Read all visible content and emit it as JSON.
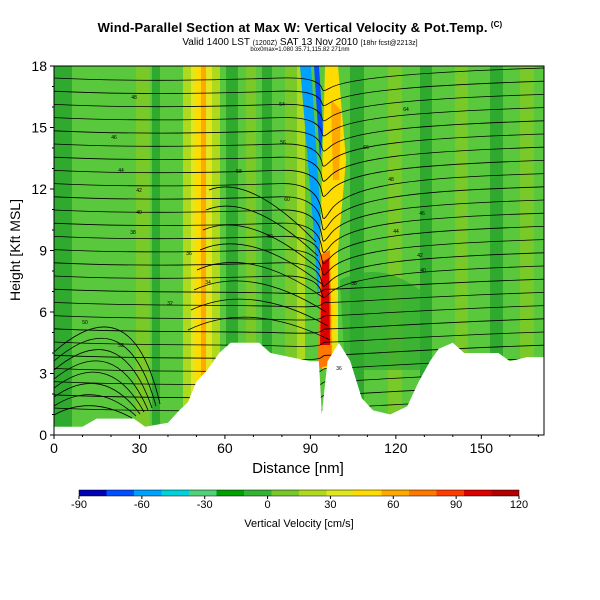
{
  "header": {
    "title": "Wind-Parallel Section at Max W: Vertical Velocity & Pot.Temp.",
    "title_mark": "(C)",
    "valid_main": "Valid 1400 LST",
    "valid_utc": "(1200Z)",
    "valid_date": "SAT 13 Nov 2010",
    "valid_run": "[18hr fcst@2213z]",
    "subline": "box0max=1.080 35.71,115.82 271nm"
  },
  "chart_data": {
    "type": "heatmap",
    "xlabel": "Distance [nm]",
    "ylabel": "Height [Kft MSL]",
    "xlim": [
      0,
      172
    ],
    "ylim": [
      0,
      18
    ],
    "x_ticks": [
      "0",
      "30",
      "60",
      "90",
      "120",
      "150"
    ],
    "y_ticks": [
      "0",
      "3",
      "6",
      "9",
      "12",
      "15",
      "18"
    ],
    "colorbar": {
      "label": "Vertical Velocity [cm/s]",
      "range": [
        -90,
        120
      ],
      "ticks": [
        "-90",
        "-60",
        "-30",
        "0",
        "30",
        "60",
        "90",
        "120"
      ],
      "colors": [
        "#0000b4",
        "#0050ff",
        "#00a0ff",
        "#00d2dc",
        "#50d278",
        "#00a000",
        "#32b432",
        "#78c828",
        "#afd91c",
        "#e1e61e",
        "#ffdc00",
        "#ffa800",
        "#ff7800",
        "#ff3c00",
        "#dc0000",
        "#b40000"
      ]
    },
    "terrain_kft": [
      [
        0,
        0.4
      ],
      [
        10,
        0.4
      ],
      [
        15,
        0.8
      ],
      [
        28,
        0.8
      ],
      [
        32,
        0.4
      ],
      [
        40,
        0.6
      ],
      [
        44,
        1.2
      ],
      [
        47,
        1.6
      ],
      [
        50,
        2.6
      ],
      [
        54,
        3.2
      ],
      [
        58,
        4.0
      ],
      [
        62,
        4.5
      ],
      [
        72,
        4.5
      ],
      [
        76,
        4.0
      ],
      [
        90,
        3.6
      ],
      [
        93,
        3.6
      ],
      [
        94,
        1.0
      ],
      [
        96,
        3.6
      ],
      [
        100,
        4.5
      ],
      [
        104,
        3.6
      ],
      [
        108,
        1.8
      ],
      [
        112,
        1.2
      ],
      [
        118,
        1.0
      ],
      [
        124,
        1.4
      ],
      [
        128,
        2.6
      ],
      [
        132,
        3.6
      ],
      [
        135,
        4.2
      ],
      [
        140,
        4.5
      ],
      [
        144,
        4.0
      ],
      [
        156,
        4.0
      ],
      [
        160,
        3.6
      ],
      [
        166,
        3.8
      ],
      [
        172,
        3.8
      ]
    ],
    "contour_labels": [
      "48",
      "46",
      "44",
      "42",
      "40",
      "38",
      "36",
      "34",
      "32",
      "50",
      "52",
      "54",
      "56",
      "58",
      "60",
      "62",
      "64",
      "66"
    ]
  }
}
